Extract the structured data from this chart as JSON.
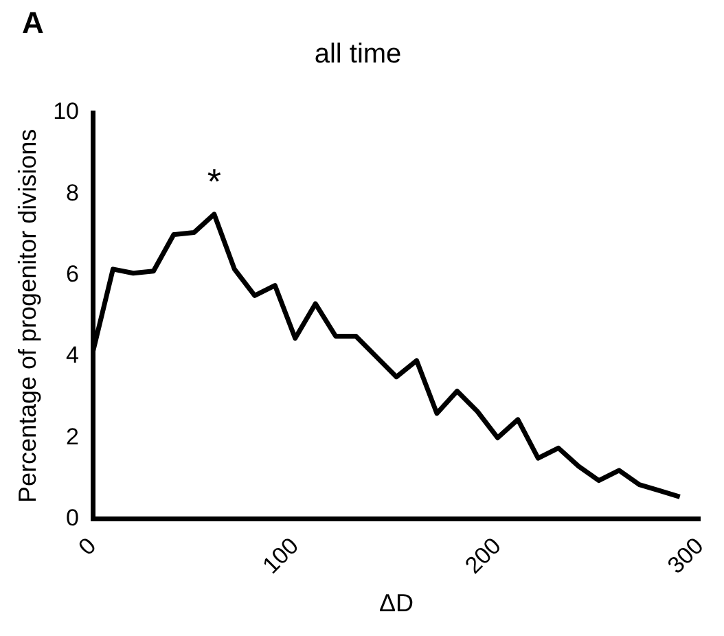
{
  "chart_data": {
    "type": "line",
    "title": "all time",
    "xlabel": "ΔD",
    "ylabel": "Percentage of progenitor divisions",
    "x": [
      0,
      10,
      20,
      30,
      40,
      50,
      60,
      70,
      80,
      90,
      100,
      110,
      120,
      130,
      140,
      150,
      160,
      170,
      180,
      190,
      200,
      210,
      220,
      230,
      240,
      250,
      260,
      270,
      280,
      290
    ],
    "series": [
      {
        "color": "#000000",
        "values": [
          4.1,
          6.15,
          6.05,
          6.1,
          7.0,
          7.05,
          7.5,
          6.15,
          5.5,
          5.75,
          4.45,
          5.3,
          4.5,
          4.5,
          4.0,
          3.5,
          3.9,
          2.6,
          3.15,
          2.65,
          2.0,
          2.45,
          1.5,
          1.75,
          1.3,
          0.95,
          1.2,
          0.85,
          0.7,
          0.55
        ]
      }
    ],
    "xlim": [
      0,
      300
    ],
    "xticks": [
      0,
      100,
      200,
      300
    ],
    "ylim": [
      0,
      10
    ],
    "yticks": [
      0,
      2,
      4,
      6,
      8,
      10
    ],
    "annotations": [
      "A",
      "*"
    ],
    "grid": false,
    "legend": false,
    "marker": "none",
    "line_style": "solid"
  }
}
